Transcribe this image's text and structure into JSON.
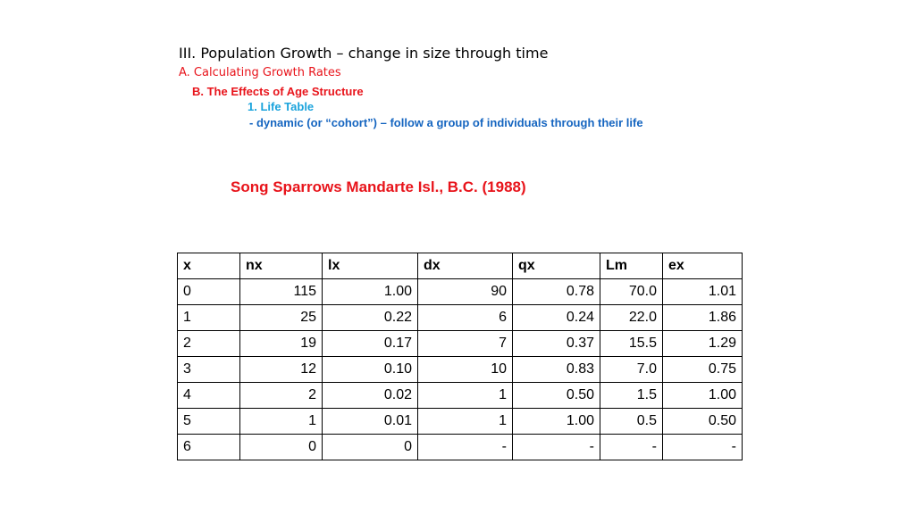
{
  "heading": {
    "title": "III. Population Growth – change in size through time",
    "section_a": "A. Calculating Growth Rates",
    "section_b": "B. The Effects of Age Structure",
    "item_1": "1. Life Table",
    "description": "- dynamic (or “cohort”) – follow a group of individuals through their life"
  },
  "table": {
    "caption": "Song Sparrows Mandarte Isl., B.C. (1988)",
    "headers": [
      "x",
      "nx",
      "lx",
      "dx",
      "qx",
      "Lm",
      "ex"
    ],
    "rows": [
      [
        "0",
        "115",
        "1.00",
        "90",
        "0.78",
        "70.0",
        "1.01"
      ],
      [
        "1",
        "25",
        "0.22",
        "6",
        "0.24",
        "22.0",
        "1.86"
      ],
      [
        "2",
        "19",
        "0.17",
        "7",
        "0.37",
        "15.5",
        "1.29"
      ],
      [
        "3",
        "12",
        "0.10",
        "10",
        "0.83",
        "7.0",
        "0.75"
      ],
      [
        "4",
        "2",
        "0.02",
        "1",
        "0.50",
        "1.5",
        "1.00"
      ],
      [
        "5",
        "1",
        "0.01",
        "1",
        "1.00",
        "0.5",
        "0.50"
      ],
      [
        "6",
        "0",
        "0",
        "-",
        "-",
        "-",
        "-"
      ]
    ]
  },
  "colors": {
    "red": "#e8141b",
    "cyan": "#1aa3dc",
    "blue": "#1565c0"
  }
}
